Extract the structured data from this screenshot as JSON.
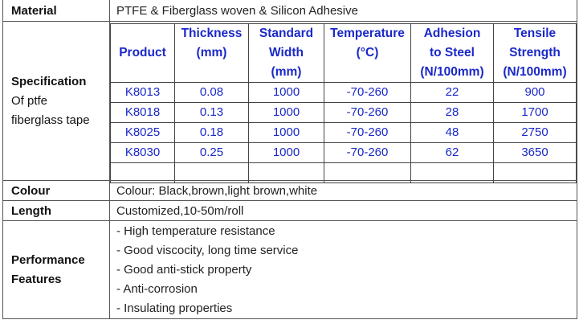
{
  "material": {
    "label": "Material",
    "value": "PTFE & Fiberglass woven & Silicon Adhesive"
  },
  "specification": {
    "label": "Specification",
    "sublabel_line1": "Of ptfe",
    "sublabel_line2": "fiberglass tape",
    "headers": [
      [
        "Product"
      ],
      [
        "Thickness",
        "(mm)"
      ],
      [
        "Standard",
        "Width",
        "(mm)"
      ],
      [
        "Temperature",
        "(°C)"
      ],
      [
        "Adhesion",
        "to Steel",
        "(N/100mm)"
      ],
      [
        "Tensile",
        "Strength",
        "(N/100mm)"
      ]
    ],
    "rows": [
      [
        "K8013",
        "0.08",
        "1000",
        "-70-260",
        "22",
        "900"
      ],
      [
        "K8018",
        "0.13",
        "1000",
        "-70-260",
        "28",
        "1700"
      ],
      [
        "K8025",
        "0.18",
        "1000",
        "-70-260",
        "48",
        "2750"
      ],
      [
        "K8030",
        "0.25",
        "1000",
        "-70-260",
        "62",
        "3650"
      ]
    ]
  },
  "colour": {
    "label": "Colour",
    "value": "Colour: Black,brown,light brown,white"
  },
  "length": {
    "label": "Length",
    "value": "Customized,10-50m/roll"
  },
  "features": {
    "label_line1": "Performance",
    "label_line2": "Features",
    "items": [
      "- High temperature resistance",
      "- Good viscocity, long time service",
      "- Good anti-stick property",
      "- Anti-corrosion",
      "- Insulating properties"
    ]
  },
  "colors": {
    "spec_text": "#1a28c8",
    "border": "#555555"
  }
}
